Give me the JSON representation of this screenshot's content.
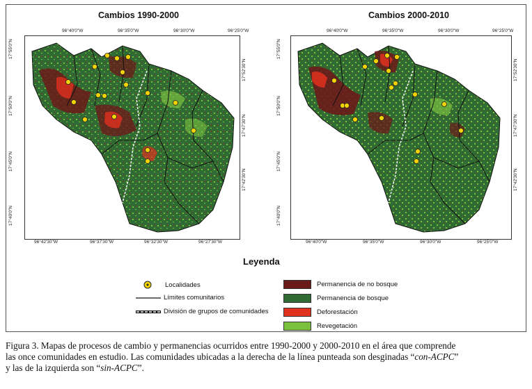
{
  "maps": [
    {
      "title": "Cambios 1990-2000",
      "top_ticks": [
        "96°40'0\"W",
        "96°35'0\"W",
        "96°30'0\"W",
        "96°25'0\"W"
      ],
      "bottom_ticks": [
        "96°42'30\"W",
        "96°37'30\"W",
        "96°32'30\"W",
        "96°27'30\"W"
      ],
      "left_ticks": [
        "17°55'0\"N",
        "17°50'0\"N",
        "17°45'0\"N",
        "17°40'0\"N"
      ],
      "right_ticks": [
        "17°52'30\"N",
        "17°47'30\"N",
        "17°42'30\"N"
      ]
    },
    {
      "title": "Cambios 2000-2010",
      "top_ticks": [
        "96°40'0\"W",
        "96°35'0\"W",
        "96°30'0\"W",
        "96°25'0\"W"
      ],
      "bottom_ticks": [
        "96°40'0\"W",
        "96°35'0\"W",
        "96°30'0\"W",
        "96°25'0\"W"
      ],
      "left_ticks": [
        "17°55'0\"N",
        "17°50'0\"N",
        "17°45'0\"N",
        "17°40'0\"N"
      ],
      "right_ticks": [
        "17°52'30\"N",
        "17°47'30\"N",
        "17°42'30\"N"
      ]
    }
  ],
  "legend": {
    "title": "Leyenda",
    "localidades": "Localidades",
    "limites": "Límites comunitarios",
    "division": "División de grupos de comunidades",
    "classes": [
      {
        "label": "Permanencia de no bosque",
        "color": "#6b1a1a"
      },
      {
        "label": "Permanencia de bosque",
        "color": "#2f6b33"
      },
      {
        "label": "Deforestación",
        "color": "#e0301e"
      },
      {
        "label": "Revegetación",
        "color": "#7bbf3f"
      }
    ]
  },
  "caption": {
    "line1": "Figura 3. Mapas de procesos de cambio y permanencias ocurridos entre 1990-2000 y 2000-2010 en el área que comprende",
    "line2a": "las once comunidades en estudio. Las comunidades ubicadas a la derecha de la línea punteada son desginadas “",
    "line2b": "con-ACPC",
    "line2c": "”",
    "line3a": "y las de la izquierda son “",
    "line3b": "sin-ACPC",
    "line3c": "”."
  }
}
